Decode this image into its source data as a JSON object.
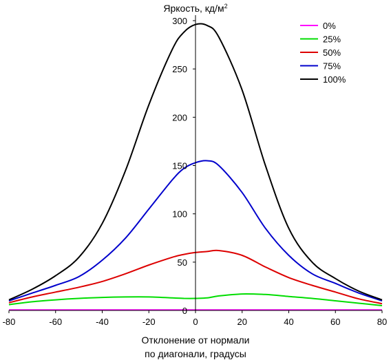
{
  "chart_data": {
    "type": "line",
    "ylabel_main": "Яркость, кд/м",
    "ylabel_sup": "2",
    "xlabel_line1": "Отклонение от нормали",
    "xlabel_line2": "по диагонали, градусы",
    "xlim": [
      -80,
      80
    ],
    "ylim": [
      0,
      300
    ],
    "x_ticks": [
      -80,
      -60,
      -40,
      -20,
      0,
      20,
      40,
      60,
      80
    ],
    "y_ticks": [
      0,
      50,
      100,
      150,
      200,
      250,
      300
    ],
    "grid": false,
    "legend_position": "top-right",
    "x": [
      -80,
      -70,
      -60,
      -50,
      -40,
      -30,
      -20,
      -10,
      -5,
      0,
      5,
      10,
      20,
      30,
      40,
      50,
      60,
      70,
      80
    ],
    "series": [
      {
        "name": "0%",
        "color": "#ff00ff",
        "values": [
          0.5,
          0.5,
          0.5,
          0.5,
          0.5,
          0.5,
          0.5,
          0.5,
          0.5,
          0.5,
          0.5,
          0.5,
          0.5,
          0.5,
          0.5,
          0.5,
          0.5,
          0.5,
          0.5
        ]
      },
      {
        "name": "25%",
        "color": "#00dd00",
        "values": [
          6,
          9,
          11,
          12.5,
          13.5,
          14,
          14,
          13,
          12.5,
          12.5,
          13,
          15,
          17,
          16.5,
          14.5,
          12.5,
          10,
          7.5,
          5
        ]
      },
      {
        "name": "50%",
        "color": "#dd0000",
        "values": [
          8,
          14,
          19,
          24,
          30,
          38,
          47,
          55,
          58,
          60,
          61,
          62,
          57,
          45,
          34,
          26,
          19,
          12,
          7
        ]
      },
      {
        "name": "75%",
        "color": "#0000cc",
        "values": [
          10,
          18,
          26,
          35,
          52,
          75,
          105,
          135,
          147,
          153,
          155,
          150,
          122,
          85,
          57,
          38,
          28,
          18,
          10
        ]
      },
      {
        "name": "100%",
        "color": "#000000",
        "values": [
          11,
          22,
          36,
          55,
          90,
          145,
          213,
          270,
          288,
          296,
          295,
          283,
          228,
          150,
          85,
          50,
          33,
          20,
          11
        ]
      }
    ]
  }
}
